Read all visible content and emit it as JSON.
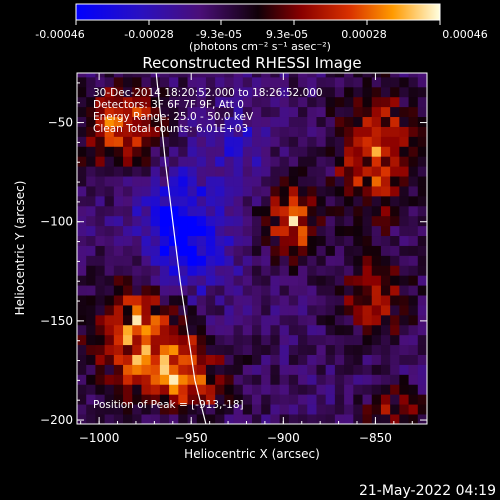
{
  "colorbar": {
    "ticks": [
      "-0.00046",
      "-0.00028",
      "-9.3e-05",
      "9.3e-05",
      "0.00028",
      "0.00046"
    ],
    "unit_label": "(photons cm⁻² s⁻¹ asec⁻²)"
  },
  "chart_data": {
    "type": "heatmap",
    "title": "Reconstructed RHESSI Image",
    "xlabel": "Heliocentric X (arcsec)",
    "ylabel": "Heliocentric Y (arcsec)",
    "xlim": [
      -1012,
      -822
    ],
    "ylim": [
      -202,
      -25
    ],
    "x_ticks": [
      -1000,
      -950,
      -900,
      -850
    ],
    "y_ticks": [
      -50,
      -100,
      -150,
      -200
    ],
    "x_tick_labels": [
      "−1000",
      "−950",
      "−900",
      "−850"
    ],
    "y_tick_labels": [
      "−50",
      "−100",
      "−150",
      "−200"
    ],
    "value_range": [
      -0.00046,
      0.00046
    ],
    "peak": {
      "x": -913,
      "y": -18
    },
    "hotspots": [
      {
        "x": -895,
        "y": -100,
        "amp": 0.00042,
        "sx": 10,
        "sy": 13
      },
      {
        "x": -850,
        "y": -65,
        "amp": 0.0004,
        "sx": 14,
        "sy": 22
      },
      {
        "x": -988,
        "y": -52,
        "amp": 0.0004,
        "sx": 15,
        "sy": 14
      },
      {
        "x": -978,
        "y": -155,
        "amp": 0.00042,
        "sx": 18,
        "sy": 18
      },
      {
        "x": -955,
        "y": -178,
        "amp": 0.00035,
        "sx": 18,
        "sy": 12
      },
      {
        "x": -850,
        "y": -140,
        "amp": 0.0003,
        "sx": 13,
        "sy": 13
      },
      {
        "x": -840,
        "y": -195,
        "amp": 0.00024,
        "sx": 12,
        "sy": 8
      },
      {
        "x": -955,
        "y": -108,
        "amp": -0.0004,
        "sx": 16,
        "sy": 22
      },
      {
        "x": -925,
        "y": -60,
        "amp": -0.00018,
        "sx": 12,
        "sy": 10
      }
    ],
    "limb": {
      "x": [
        -969,
        -964,
        -956,
        -948,
        -942
      ],
      "y": [
        -25,
        -70,
        -130,
        -180,
        -202
      ]
    },
    "info_lines": [
      "30-Dec-2014 18:20:52.000 to 18:26:52.000",
      "Detectors: 3F 6F 7F 9F, Att 0",
      "Energy Range: 25.0 - 50.0 keV",
      "Clean    Total counts: 6.01E+03"
    ],
    "peak_label": "Position of Peak = [-913,-18]",
    "colors": {
      "background": "#000000",
      "axes": "#ffffff",
      "limb": "#ffffff"
    }
  },
  "timestamp": "21-May-2022 04:19"
}
